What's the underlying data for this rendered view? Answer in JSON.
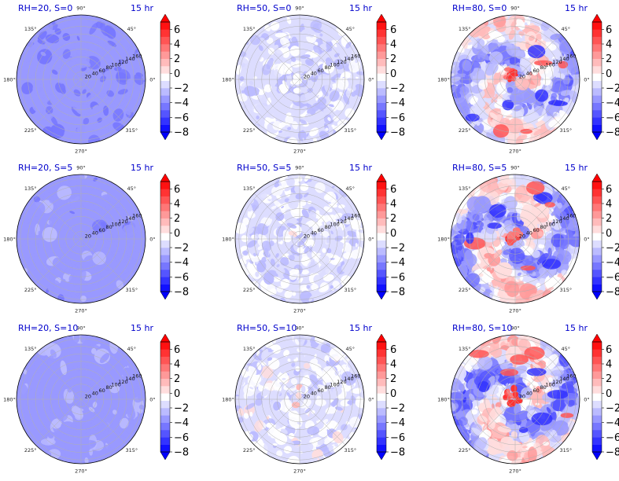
{
  "chart_data": {
    "type": "heatmap",
    "projection": "polar",
    "grid": true,
    "layout": {
      "rows": 3,
      "cols": 3
    },
    "time_label": "15 hr",
    "angle_tick_labels": [
      "0°",
      "45°",
      "90°",
      "135°",
      "180°",
      "225°",
      "270°",
      "315°"
    ],
    "radial_tick_labels": [
      "20",
      "40",
      "60",
      "80",
      "100",
      "120",
      "140",
      "160"
    ],
    "radial_range": [
      0,
      170
    ],
    "colorbar": {
      "colormap": "bwr",
      "range": [
        -8,
        7
      ],
      "levels": [
        -8,
        -7,
        -6,
        -5,
        -4,
        -3,
        -2,
        -1,
        0,
        1,
        2,
        3,
        4,
        5,
        6,
        7
      ],
      "tick_labels": [
        "6",
        "4",
        "2",
        "0",
        "−2",
        "−4",
        "−6",
        "−8"
      ],
      "extend": "both"
    },
    "panels": [
      {
        "title": "RH=20, S=0",
        "rh": 20,
        "s": 0,
        "mean": -3.8,
        "spread": 0.6,
        "speckle": 0.0
      },
      {
        "title": "RH=50, S=0",
        "rh": 50,
        "s": 0,
        "mean": -1.6,
        "spread": 1.2,
        "speckle": 0.35
      },
      {
        "title": "RH=80, S=0",
        "rh": 80,
        "s": 0,
        "mean": -1.5,
        "spread": 3.0,
        "speckle": 0.7
      },
      {
        "title": "RH=20, S=5",
        "rh": 20,
        "s": 5,
        "mean": -3.5,
        "spread": 0.6,
        "speckle": 0.0
      },
      {
        "title": "RH=50, S=5",
        "rh": 50,
        "s": 5,
        "mean": -1.3,
        "spread": 1.3,
        "speckle": 0.4
      },
      {
        "title": "RH=80, S=5",
        "rh": 80,
        "s": 5,
        "mean": -1.6,
        "spread": 3.4,
        "speckle": 0.8
      },
      {
        "title": "RH=20, S=10",
        "rh": 20,
        "s": 10,
        "mean": -3.3,
        "spread": 0.6,
        "speckle": 0.0
      },
      {
        "title": "RH=50, S=10",
        "rh": 50,
        "s": 10,
        "mean": -1.2,
        "spread": 1.3,
        "speckle": 0.4
      },
      {
        "title": "RH=80, S=10",
        "rh": 80,
        "s": 10,
        "mean": -1.6,
        "spread": 3.5,
        "speckle": 0.85
      }
    ]
  }
}
